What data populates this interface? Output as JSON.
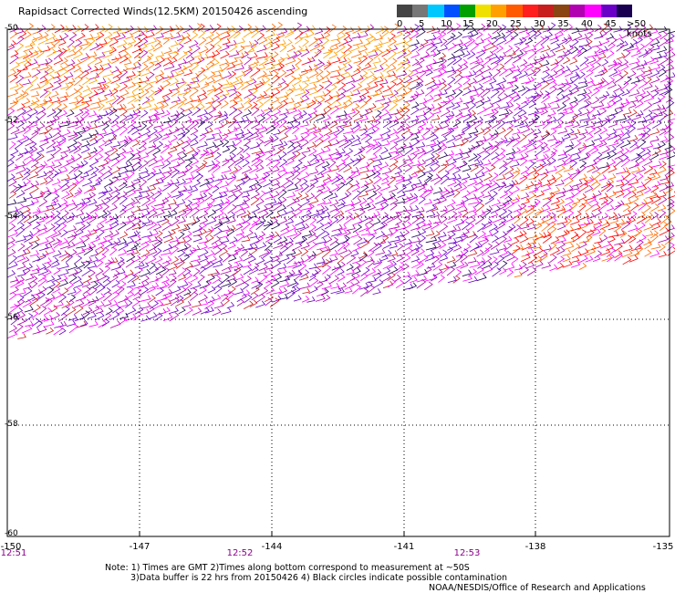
{
  "title": "Rapidsact Corrected Winds(12.5KM) 20150426 ascending",
  "legend": {
    "labels": [
      "0",
      "5",
      "10",
      "15",
      "20",
      "25",
      "30",
      "35",
      "40",
      "45",
      ">50 knots"
    ],
    "colors": [
      "#444444",
      "#777777",
      "#00c8ff",
      "#0050ff",
      "#00a000",
      "#f0e000",
      "#ffa000",
      "#ff5a00",
      "#ff1e1e",
      "#c81e1e",
      "#8b4513",
      "#b000b0",
      "#ff00ff",
      "#6a00c8",
      "#1a0050"
    ]
  },
  "map": {
    "lat_labels": [
      "-50",
      "-52",
      "-54",
      "-56",
      "-58",
      "-60"
    ],
    "lon_labels": [
      "-150",
      "-147",
      "-144",
      "-141",
      "-138",
      "-135"
    ],
    "time_labels": [
      "12:51",
      "12:52",
      "12:53"
    ],
    "wind_colors": [
      "#ff6a00",
      "#ffa000",
      "#ff0000",
      "#c81e1e",
      "#b000b0",
      "#ff00ff",
      "#6a00c8",
      "#1a0050"
    ]
  },
  "notes": [
    "Note: 1) Times are GMT 2)Times along bottom correspond to measurement at ~50S",
    "3)Data buffer is 22 hrs from 20150426 4) Black circles indicate possible contamination",
    "NOAA/NESDIS/Office of Research and Applications"
  ]
}
